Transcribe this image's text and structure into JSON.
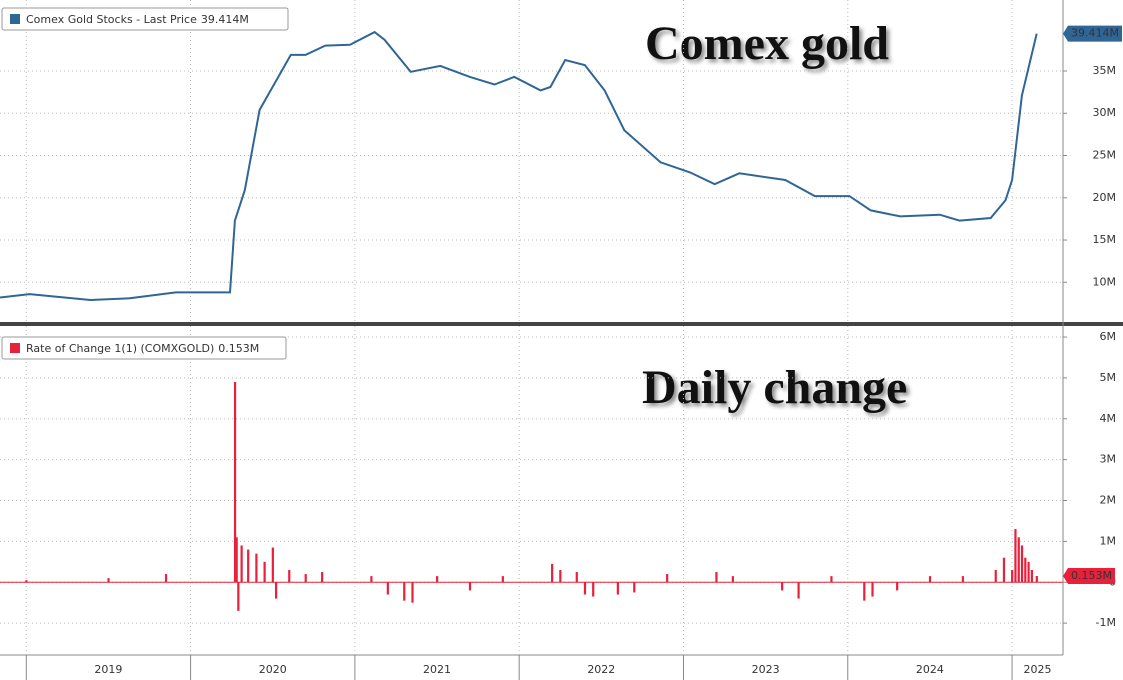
{
  "chart_data": [
    {
      "type": "line",
      "annotation": "Comex gold",
      "x": [
        2018.84,
        2019.02,
        2019.39,
        2019.63,
        2019.91,
        2020.24,
        2020.27,
        2020.33,
        2020.42,
        2020.61,
        2020.7,
        2020.82,
        2020.97,
        2021.12,
        2021.18,
        2021.34,
        2021.52,
        2021.7,
        2021.85,
        2021.97,
        2022.13,
        2022.19,
        2022.28,
        2022.4,
        2022.52,
        2022.64,
        2022.86,
        2023.04,
        2023.19,
        2023.34,
        2023.62,
        2023.8,
        2024.01,
        2024.14,
        2024.32,
        2024.56,
        2024.68,
        2024.87,
        2024.96,
        2025.0,
        2025.06,
        2025.15
      ],
      "series": [
        {
          "name": "Comex Gold Stocks - Last Price",
          "color": "#2f6696",
          "values": [
            8.2,
            8.6,
            7.9,
            8.1,
            8.8,
            8.8,
            17.3,
            20.9,
            30.4,
            36.9,
            36.9,
            38.0,
            38.1,
            39.6,
            38.7,
            34.9,
            35.6,
            34.3,
            33.4,
            34.3,
            32.7,
            33.1,
            36.3,
            35.7,
            32.7,
            28.0,
            24.2,
            23.0,
            21.6,
            22.9,
            22.1,
            20.2,
            20.2,
            18.5,
            17.8,
            18.0,
            17.3,
            17.6,
            19.7,
            22.1,
            32.1,
            39.414
          ],
          "last_label": "39.414M"
        }
      ],
      "xlim": [
        2018.84,
        2025.31
      ],
      "xticks": [
        2019,
        2020,
        2021,
        2022,
        2023,
        2024,
        2025
      ],
      "ylim": [
        5.3,
        43.4
      ],
      "yticks": [
        {
          "value": 10,
          "label": "10M"
        },
        {
          "value": 15,
          "label": "15M"
        },
        {
          "value": 20,
          "label": "20M"
        },
        {
          "value": 25,
          "label": "25M"
        },
        {
          "value": 30,
          "label": "30M"
        },
        {
          "value": 35,
          "label": "35M"
        }
      ],
      "grid": true
    },
    {
      "type": "bar",
      "annotation": "Daily change",
      "name": "Rate of Change 1(1) (COMXGOLD)",
      "color": "#e8203a",
      "last_label": "0.153M",
      "x": [
        2019.0,
        2019.5,
        2019.85,
        2020.27,
        2020.28,
        2020.29,
        2020.31,
        2020.35,
        2020.4,
        2020.45,
        2020.5,
        2020.52,
        2020.6,
        2020.7,
        2020.8,
        2021.1,
        2021.2,
        2021.3,
        2021.35,
        2021.5,
        2021.7,
        2021.9,
        2022.2,
        2022.25,
        2022.35,
        2022.4,
        2022.45,
        2022.6,
        2022.7,
        2022.9,
        2023.2,
        2023.3,
        2023.6,
        2023.7,
        2023.9,
        2024.1,
        2024.15,
        2024.3,
        2024.5,
        2024.7,
        2024.9,
        2024.95,
        2025.0,
        2025.02,
        2025.04,
        2025.06,
        2025.08,
        2025.1,
        2025.12,
        2025.15
      ],
      "values": [
        0.05,
        0.1,
        0.2,
        4.9,
        1.1,
        -0.7,
        0.9,
        0.8,
        0.7,
        0.5,
        0.85,
        -0.4,
        0.3,
        0.2,
        0.25,
        0.15,
        -0.3,
        -0.45,
        -0.5,
        0.15,
        -0.2,
        0.15,
        0.45,
        0.3,
        0.25,
        -0.3,
        -0.35,
        -0.3,
        -0.25,
        0.2,
        0.25,
        0.15,
        -0.2,
        -0.4,
        0.15,
        -0.45,
        -0.35,
        -0.2,
        0.15,
        0.15,
        0.3,
        0.6,
        0.3,
        1.3,
        1.1,
        0.9,
        0.6,
        0.5,
        0.3,
        0.153
      ],
      "xlim": [
        2018.84,
        2025.31
      ],
      "xticks": [
        {
          "value": 2019,
          "label": "2019"
        },
        {
          "value": 2020,
          "label": "2020"
        },
        {
          "value": 2021,
          "label": "2021"
        },
        {
          "value": 2022,
          "label": "2022"
        },
        {
          "value": 2023,
          "label": "2023"
        },
        {
          "value": 2024,
          "label": "2024"
        },
        {
          "value": 2025,
          "label": "2025"
        }
      ],
      "ylim": [
        -1.78,
        6.27
      ],
      "yticks": [
        {
          "value": -1,
          "label": "-1M"
        },
        0,
        {
          "value": 1,
          "label": "1M"
        },
        {
          "value": 2,
          "label": "2M"
        },
        {
          "value": 3,
          "label": "3M"
        },
        {
          "value": 4,
          "label": "4M"
        },
        {
          "value": 5,
          "label": "5M"
        },
        {
          "value": 6,
          "label": "6M"
        }
      ],
      "grid": true
    }
  ]
}
